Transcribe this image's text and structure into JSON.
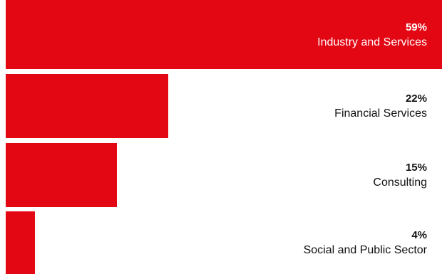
{
  "chart_data": {
    "type": "bar",
    "orientation": "horizontal",
    "categories": [
      "Industry and Services",
      "Financial Services",
      "Consulting",
      "Social and Public Sector"
    ],
    "values": [
      59,
      22,
      15,
      4
    ],
    "value_labels": [
      "59%",
      "22%",
      "15%",
      "4%"
    ],
    "unit": "%",
    "xlim": [
      0,
      59
    ],
    "grid": false,
    "legend": "none",
    "colors": {
      "bar": "#e30613",
      "text_on_bar": "#ffffff",
      "text_default": "#111111"
    }
  }
}
